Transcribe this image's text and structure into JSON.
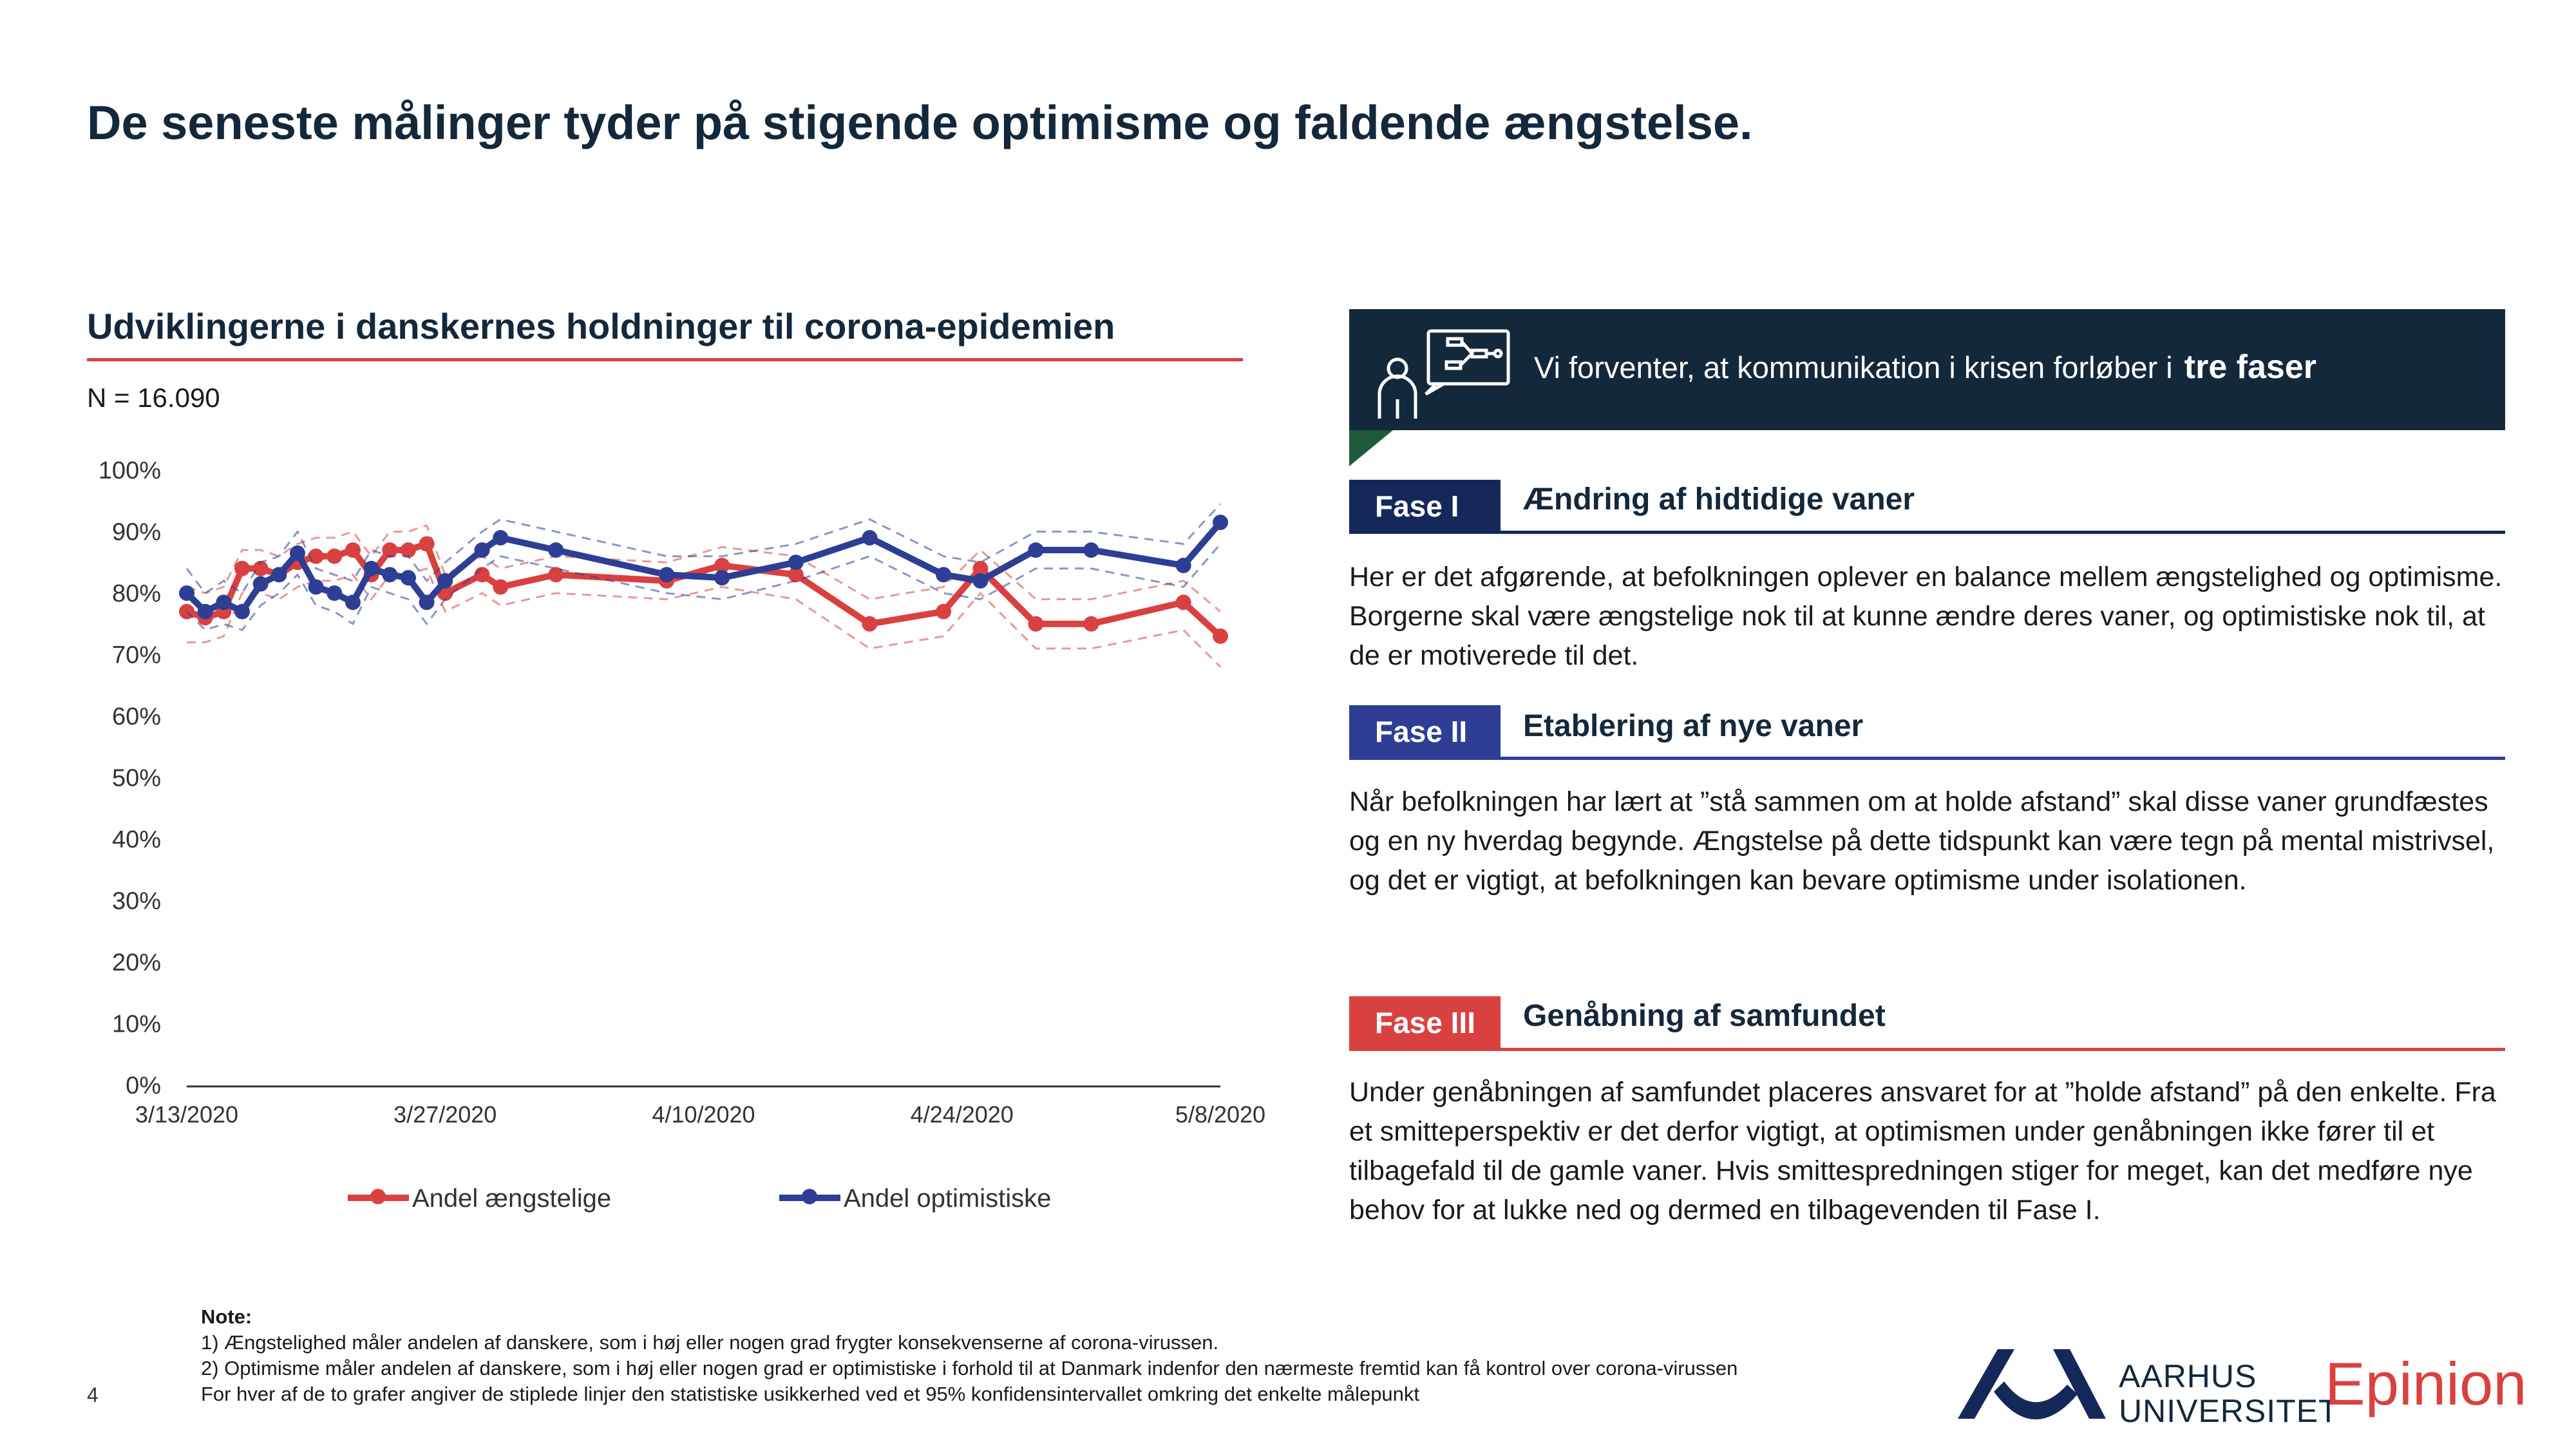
{
  "page": {
    "title": "De seneste målinger tyder på stigende optimisme og faldende ængstelse.",
    "page_number": "4"
  },
  "chart_header": {
    "title": "Udviklingerne i danskernes holdninger til corona-epidemien",
    "sample": "N = 16.090"
  },
  "chart_data": {
    "type": "line",
    "title": "Udviklingerne i danskernes holdninger til corona-epidemien",
    "ylim": [
      0,
      1
    ],
    "yticks": [
      "100%",
      "90%",
      "80%",
      "70%",
      "60%",
      "50%",
      "40%",
      "30%",
      "20%",
      "10%",
      "0%"
    ],
    "xlim": [
      "3/13/2020",
      "5/8/2020"
    ],
    "xticks": [
      "3/13/2020",
      "3/27/2020",
      "4/10/2020",
      "4/24/2020",
      "5/8/2020"
    ],
    "grid": false,
    "legend_position": "bottom",
    "series": [
      {
        "name": "Andel ængstelige",
        "color": "#d94141",
        "x": [
          "3/13/2020",
          "3/14/2020",
          "3/15/2020",
          "3/16/2020",
          "3/17/2020",
          "3/18/2020",
          "3/19/2020",
          "3/20/2020",
          "3/21/2020",
          "3/22/2020",
          "3/23/2020",
          "3/24/2020",
          "3/25/2020",
          "3/26/2020",
          "3/27/2020",
          "3/29/2020",
          "3/30/2020",
          "4/2/2020",
          "4/8/2020",
          "4/11/2020",
          "4/15/2020",
          "4/19/2020",
          "4/23/2020",
          "4/25/2020",
          "4/28/2020",
          "5/1/2020",
          "5/6/2020",
          "5/8/2020"
        ],
        "values": [
          0.77,
          0.76,
          0.77,
          0.84,
          0.84,
          0.83,
          0.85,
          0.86,
          0.86,
          0.87,
          0.83,
          0.87,
          0.87,
          0.88,
          0.8,
          0.83,
          0.81,
          0.83,
          0.82,
          0.845,
          0.83,
          0.75,
          0.77,
          0.84,
          0.75,
          0.75,
          0.785,
          0.73
        ],
        "ci_lower": [
          0.72,
          0.72,
          0.73,
          0.8,
          0.8,
          0.79,
          0.81,
          0.82,
          0.82,
          0.83,
          0.79,
          0.83,
          0.83,
          0.84,
          0.77,
          0.8,
          0.78,
          0.8,
          0.79,
          0.81,
          0.79,
          0.71,
          0.73,
          0.8,
          0.71,
          0.71,
          0.74,
          0.68
        ],
        "ci_upper": [
          0.81,
          0.8,
          0.81,
          0.87,
          0.87,
          0.86,
          0.88,
          0.89,
          0.89,
          0.9,
          0.86,
          0.9,
          0.9,
          0.91,
          0.83,
          0.86,
          0.84,
          0.86,
          0.85,
          0.875,
          0.86,
          0.79,
          0.81,
          0.87,
          0.79,
          0.79,
          0.82,
          0.77
        ]
      },
      {
        "name": "Andel optimistiske",
        "color": "#2d3e94",
        "x": [
          "3/13/2020",
          "3/14/2020",
          "3/15/2020",
          "3/16/2020",
          "3/17/2020",
          "3/18/2020",
          "3/19/2020",
          "3/20/2020",
          "3/21/2020",
          "3/22/2020",
          "3/23/2020",
          "3/24/2020",
          "3/25/2020",
          "3/26/2020",
          "3/27/2020",
          "3/29/2020",
          "3/30/2020",
          "4/2/2020",
          "4/8/2020",
          "4/11/2020",
          "4/15/2020",
          "4/19/2020",
          "4/23/2020",
          "4/25/2020",
          "4/28/2020",
          "5/1/2020",
          "5/6/2020",
          "5/8/2020"
        ],
        "values": [
          0.8,
          0.77,
          0.785,
          0.77,
          0.815,
          0.83,
          0.865,
          0.81,
          0.8,
          0.785,
          0.84,
          0.83,
          0.825,
          0.785,
          0.82,
          0.87,
          0.89,
          0.87,
          0.83,
          0.825,
          0.85,
          0.89,
          0.83,
          0.82,
          0.87,
          0.87,
          0.845,
          0.915
        ],
        "ci_lower": [
          0.77,
          0.74,
          0.75,
          0.74,
          0.78,
          0.8,
          0.83,
          0.78,
          0.77,
          0.75,
          0.81,
          0.8,
          0.79,
          0.75,
          0.79,
          0.84,
          0.86,
          0.84,
          0.8,
          0.79,
          0.82,
          0.86,
          0.8,
          0.79,
          0.84,
          0.84,
          0.81,
          0.88
        ],
        "ci_upper": [
          0.84,
          0.8,
          0.82,
          0.8,
          0.85,
          0.86,
          0.9,
          0.84,
          0.83,
          0.82,
          0.87,
          0.86,
          0.86,
          0.82,
          0.85,
          0.9,
          0.92,
          0.9,
          0.86,
          0.86,
          0.88,
          0.92,
          0.86,
          0.85,
          0.9,
          0.9,
          0.88,
          0.945
        ]
      }
    ]
  },
  "banner": {
    "text": "Vi forventer, at kommunikation i krisen forløber i",
    "emphasis": "tre faser",
    "icon": "presentation-person-icon"
  },
  "phases": [
    {
      "tag": "Fase I",
      "heading": "Ændring af hidtidige vaner",
      "body": "Her er det afgørende, at befolkningen oplever en balance mellem ængstelighed og optimisme. Borgerne skal være ængstelige nok til at kunne ændre deres vaner, og optimistiske nok til, at de er motiverede til det."
    },
    {
      "tag": "Fase II",
      "heading": "Etablering af nye vaner",
      "body": "Når befolkningen har lært at ”stå sammen om at holde afstand” skal disse vaner grundfæstes og en ny hverdag begynde. Ængstelse på dette tidspunkt kan være tegn på mental mistrivsel, og det er vigtigt, at befolkningen kan bevare optimisme under isolationen."
    },
    {
      "tag": "Fase III",
      "heading": "Genåbning af samfundet",
      "body": "Under genåbningen af samfundet placeres ansvaret for at ”holde afstand” på den enkelte. Fra et smitteperspektiv er det derfor vigtigt, at optimismen under genåbningen ikke fører til et tilbagefald til de gamle vaner. Hvis smittespredningen stiger for meget, kan det medføre nye behov for at lukke ned og dermed en tilbagevenden til Fase I."
    }
  ],
  "notes": {
    "heading": "Note:",
    "lines": [
      "1) Ængstelighed måler andelen af danskere, som i høj eller nogen grad frygter konsekvenserne af corona-virussen.",
      "2) Optimisme måler andelen af danskere, som i høj eller nogen grad er optimistiske i forhold til at Danmark indenfor den nærmeste fremtid kan få kontrol over corona-virussen",
      "For hver af de to grafer angiver de stiplede linjer den statistiske usikkerhed ved et 95% konfidensintervallet omkring det enkelte målepunkt"
    ]
  },
  "logos": {
    "aarhus_line1": "AARHUS",
    "aarhus_line2": "UNIVERSITET",
    "epinion": "Epinion"
  },
  "colors": {
    "navy": "#14283c",
    "fase1": "#14285a",
    "fase2": "#2d3e94",
    "fase3": "#d94141"
  }
}
